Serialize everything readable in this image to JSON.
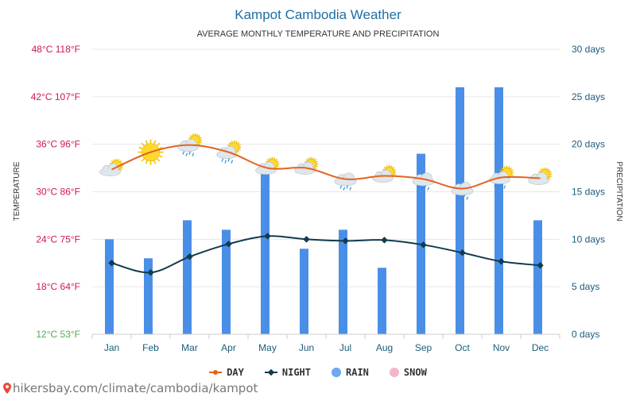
{
  "colors": {
    "title": "#1d6fa5",
    "day_line": "#e2641f",
    "night_line": "#123b4f",
    "rain_bar": "#4a8fe7",
    "snow_legend": "#f5b5c8",
    "left_axis_hot": "#d4145a",
    "left_axis_cold": "#4caf50",
    "right_axis": "#1a5d7a",
    "grid": "#e6e6e6"
  },
  "chart_data": {
    "type": "bar+line",
    "title": "Kampot Cambodia Weather",
    "subtitle": "AVERAGE MONTHLY TEMPERATURE AND PRECIPITATION",
    "ylabel_left": "TEMPERATURE",
    "ylabel_right": "PRECIPITATION",
    "categories": [
      "Jan",
      "Feb",
      "Mar",
      "Apr",
      "May",
      "Jun",
      "Jul",
      "Aug",
      "Sep",
      "Oct",
      "Nov",
      "Dec"
    ],
    "left_axis": {
      "range": [
        12,
        48
      ],
      "ticks": [
        {
          "value": 48,
          "label": "48°C 118°F"
        },
        {
          "value": 42,
          "label": "42°C 107°F"
        },
        {
          "value": 36,
          "label": "36°C 96°F"
        },
        {
          "value": 30,
          "label": "30°C 86°F"
        },
        {
          "value": 24,
          "label": "24°C 75°F"
        },
        {
          "value": 18,
          "label": "18°C 64°F"
        },
        {
          "value": 12,
          "label": "12°C 53°F"
        }
      ]
    },
    "right_axis": {
      "range": [
        0,
        30
      ],
      "ticks": [
        {
          "value": 30,
          "label": "30 days"
        },
        {
          "value": 25,
          "label": "25 days"
        },
        {
          "value": 20,
          "label": "20 days"
        },
        {
          "value": 15,
          "label": "15 days"
        },
        {
          "value": 10,
          "label": "10 days"
        },
        {
          "value": 5,
          "label": "5 days"
        },
        {
          "value": 0,
          "label": "0 days"
        }
      ]
    },
    "series": [
      {
        "name": "DAY",
        "kind": "line",
        "axis": "left",
        "values": [
          32.8,
          35.0,
          35.9,
          35.0,
          33.0,
          33.0,
          31.6,
          32.0,
          31.6,
          30.4,
          31.8,
          31.7
        ]
      },
      {
        "name": "NIGHT",
        "kind": "line",
        "axis": "left",
        "values": [
          21.0,
          19.8,
          21.8,
          23.4,
          24.4,
          24.0,
          23.8,
          23.9,
          23.3,
          22.3,
          21.2,
          20.7
        ]
      },
      {
        "name": "RAIN",
        "kind": "bar",
        "axis": "right",
        "values": [
          10,
          8,
          12,
          11,
          17,
          9,
          11,
          7,
          19,
          26,
          26,
          12
        ]
      }
    ],
    "weather_icons": [
      "partly-cloudy",
      "sunny",
      "cloud-rain-sun",
      "cloud-rain-sun",
      "partly-cloudy",
      "partly-cloudy",
      "cloud-rain",
      "partly-cloudy",
      "cloud-rain",
      "cloud-rain",
      "cloud-rain-sun",
      "partly-cloudy"
    ],
    "legend": [
      {
        "name": "DAY",
        "marker": "line-dot"
      },
      {
        "name": "NIGHT",
        "marker": "line-diamond"
      },
      {
        "name": "RAIN",
        "marker": "circle"
      },
      {
        "name": "SNOW",
        "marker": "circle"
      }
    ],
    "legend_position": "bottom-center",
    "grid": true
  },
  "footer": {
    "credit": "hikersbay.com/climate/cambodia/kampot",
    "pin_icon": "location-pin-icon"
  }
}
